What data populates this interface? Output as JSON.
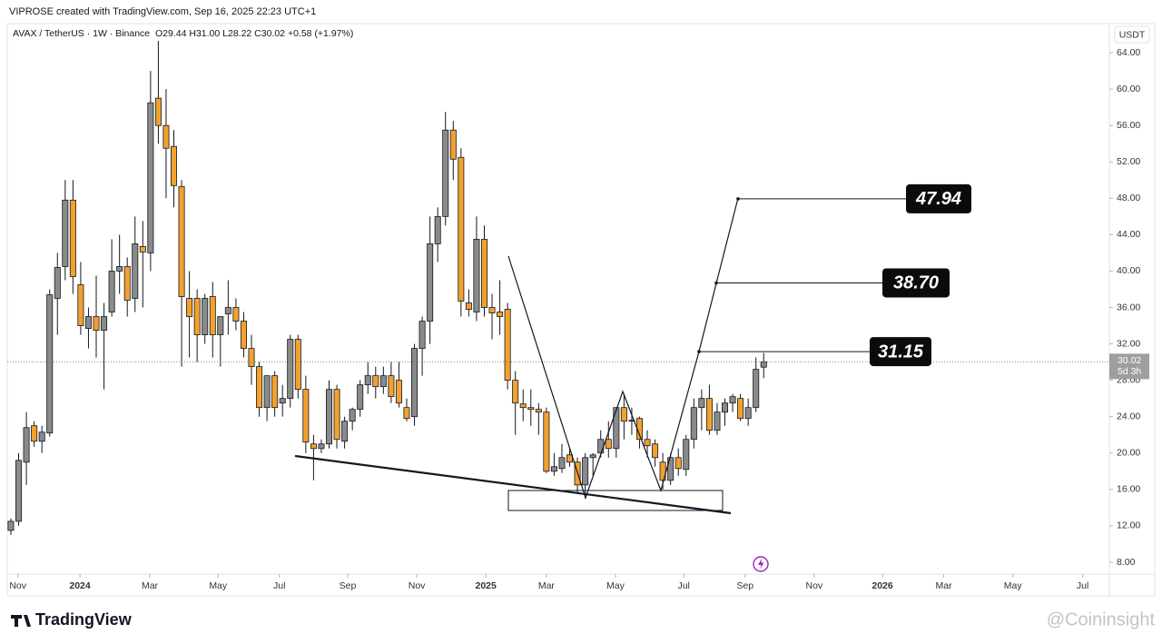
{
  "header": {
    "author_line": "VIPROSE created with TradingView.com, Sep 16, 2025 22:23 UTC+1"
  },
  "chart_data": {
    "type": "candlestick",
    "symbol": "AVAX / TetherUS · 1W · Binance",
    "ohlc_summary": "O29.44 H31.00 L28.22 C30.02 +0.58 (+1.97%)",
    "currency": "USDT",
    "countdown": "5d 3h",
    "up_color": "#8a8a8a",
    "down_color": "#f2a12e",
    "open": [
      11.5,
      12.5,
      19,
      23,
      21.3,
      22.2,
      37,
      40.5,
      47.8,
      38.5,
      33.7,
      35,
      33.5,
      35.5,
      40,
      40.5,
      37,
      42.7,
      42,
      59,
      56,
      53.7,
      49.3,
      37,
      37,
      33,
      37.2,
      33,
      35.3,
      36,
      34.5,
      31.5,
      29.5,
      25,
      28.5,
      25.5,
      26,
      32.5,
      27,
      21,
      20.5,
      21,
      27,
      21.3,
      23.5,
      24.8,
      27.5,
      28.5,
      27.3,
      28.5,
      28,
      25,
      24,
      31.5,
      34.5,
      43,
      46,
      55.5,
      52.5,
      36.5,
      35.5,
      43.5,
      36,
      35.5,
      35.8,
      28,
      25.4,
      25,
      24.8,
      24.5,
      18,
      18.3,
      19.8,
      19,
      16.5,
      19.5,
      20,
      21.5,
      20.5,
      25,
      23.5,
      23.8,
      21.5,
      21,
      19,
      17,
      19.5,
      18.2,
      21.5,
      25,
      26,
      22.5,
      24.5,
      25.5,
      26,
      23.8,
      25,
      29.44
    ],
    "high": [
      12.8,
      20,
      24.5,
      23.5,
      23,
      38,
      42,
      50,
      50,
      41,
      36,
      39.5,
      36.5,
      43.5,
      44,
      41.5,
      46,
      45.5,
      62,
      65.3,
      60,
      55.5,
      50,
      40,
      38,
      37.5,
      38.8,
      35,
      39,
      37,
      35.5,
      33,
      30,
      28.5,
      29,
      27.5,
      33,
      33,
      28.5,
      22,
      21.5,
      28,
      27.5,
      24,
      25,
      28,
      30,
      29.5,
      29.5,
      30,
      30,
      26,
      32,
      35,
      46,
      47,
      57.5,
      56.5,
      53.5,
      38,
      46,
      45,
      37.5,
      39,
      36.5,
      29,
      27,
      27,
      25.5,
      25,
      20,
      21,
      20.5,
      19.5,
      20,
      20,
      22.5,
      23.5,
      25,
      26.5,
      25,
      24,
      22.5,
      21.5,
      20,
      20,
      20.5,
      22,
      26,
      27,
      27.5,
      25.5,
      26,
      26.5,
      26.5,
      26,
      30.5,
      31.0
    ],
    "low": [
      11,
      12,
      16.5,
      20.7,
      20,
      21.8,
      33,
      39,
      37.5,
      33,
      31.5,
      30.5,
      27,
      35,
      37.5,
      35,
      35.5,
      36,
      40,
      54,
      48,
      47,
      29.5,
      30.5,
      30,
      32,
      30.5,
      29.5,
      33,
      33.5,
      30.5,
      27.5,
      24,
      23.5,
      24,
      24,
      25,
      26,
      20,
      17,
      20,
      20.5,
      20.5,
      20.5,
      22.5,
      24,
      26.5,
      26,
      26.5,
      25.5,
      25,
      23.5,
      23,
      28.5,
      32,
      41,
      45,
      50,
      35,
      35,
      34.5,
      35,
      32.5,
      33,
      27,
      22,
      23.5,
      23,
      22,
      17.8,
      17.5,
      17.8,
      18.5,
      15.5,
      15,
      17.5,
      19.5,
      19.5,
      19.5,
      21.5,
      22,
      20.5,
      19.5,
      18.5,
      16,
      16.5,
      17.5,
      17.5,
      20.5,
      22.5,
      22,
      22,
      23,
      24.5,
      23.5,
      23,
      24.5,
      28.22
    ],
    "close": [
      12.5,
      19.2,
      22.8,
      21.3,
      22.3,
      37.4,
      40.4,
      47.8,
      39.4,
      34,
      35,
      33.5,
      35,
      40,
      40.5,
      36.8,
      43,
      42.1,
      58.5,
      56,
      53.5,
      49.4,
      37.2,
      35,
      33,
      37,
      33,
      35,
      36,
      34.5,
      31.5,
      29.5,
      25,
      28.5,
      25,
      26,
      32.5,
      27,
      21.2,
      20.5,
      21,
      27,
      21.5,
      23.5,
      24.8,
      27.5,
      28.5,
      27.3,
      28.5,
      26.2,
      25.5,
      23.8,
      31.5,
      34.5,
      43,
      46,
      55.5,
      52.3,
      36.7,
      35.8,
      43.5,
      36,
      35.4,
      35,
      28,
      25.5,
      25,
      24.8,
      24.5,
      18,
      18.5,
      19.5,
      19,
      16.5,
      19.5,
      19.8,
      21.5,
      20.5,
      25,
      23.5,
      23.6,
      21.5,
      20.8,
      19.5,
      17,
      19.5,
      18.3,
      21.5,
      25,
      26,
      22.5,
      24.5,
      25.5,
      26.2,
      23.8,
      25,
      29.2,
      30.02
    ],
    "levels": [
      {
        "value": 31.15,
        "label": "31.15"
      },
      {
        "value": 38.7,
        "label": "38.70"
      },
      {
        "value": 47.94,
        "label": "47.94"
      }
    ],
    "ylim": [
      6.7,
      66.8
    ],
    "yticks": [
      {
        "value": 8,
        "label": "8.00"
      },
      {
        "value": 12,
        "label": "12.00"
      },
      {
        "value": 16,
        "label": "16.00"
      },
      {
        "value": 20,
        "label": "20.00"
      },
      {
        "value": 24,
        "label": "24.00"
      },
      {
        "value": 28,
        "label": "28.00"
      },
      {
        "value": 32,
        "label": "32.00"
      },
      {
        "value": 36,
        "label": "36.00"
      },
      {
        "value": 40,
        "label": "40.00"
      },
      {
        "value": 44,
        "label": "44.00"
      },
      {
        "value": 48,
        "label": "48.00"
      },
      {
        "value": 52,
        "label": "52.00"
      },
      {
        "value": 56,
        "label": "56.00"
      },
      {
        "value": 60,
        "label": "60.00"
      },
      {
        "value": 64,
        "label": "64.00"
      }
    ],
    "xlim": [
      -1.4,
      141.3
    ],
    "xticks": [
      {
        "value": 0.9,
        "label": "Nov"
      },
      {
        "value": 8.9,
        "label": "2024"
      },
      {
        "value": 17.9,
        "label": "Mar"
      },
      {
        "value": 26.7,
        "label": "May"
      },
      {
        "value": 34.6,
        "label": "Jul"
      },
      {
        "value": 43.4,
        "label": "Sep"
      },
      {
        "value": 52.3,
        "label": "Nov"
      },
      {
        "value": 61.2,
        "label": "2025"
      },
      {
        "value": 69,
        "label": "Mar"
      },
      {
        "value": 77.9,
        "label": "May"
      },
      {
        "value": 86.7,
        "label": "Jul"
      },
      {
        "value": 94.6,
        "label": "Sep"
      },
      {
        "value": 103.5,
        "label": "Nov"
      },
      {
        "value": 112.3,
        "label": "2026"
      },
      {
        "value": 120.2,
        "label": "Mar"
      },
      {
        "value": 129.1,
        "label": "May"
      },
      {
        "value": 138.1,
        "label": "Jul"
      }
    ]
  },
  "footer": {
    "brand": "TradingView",
    "watermark": "@Coininsight"
  }
}
